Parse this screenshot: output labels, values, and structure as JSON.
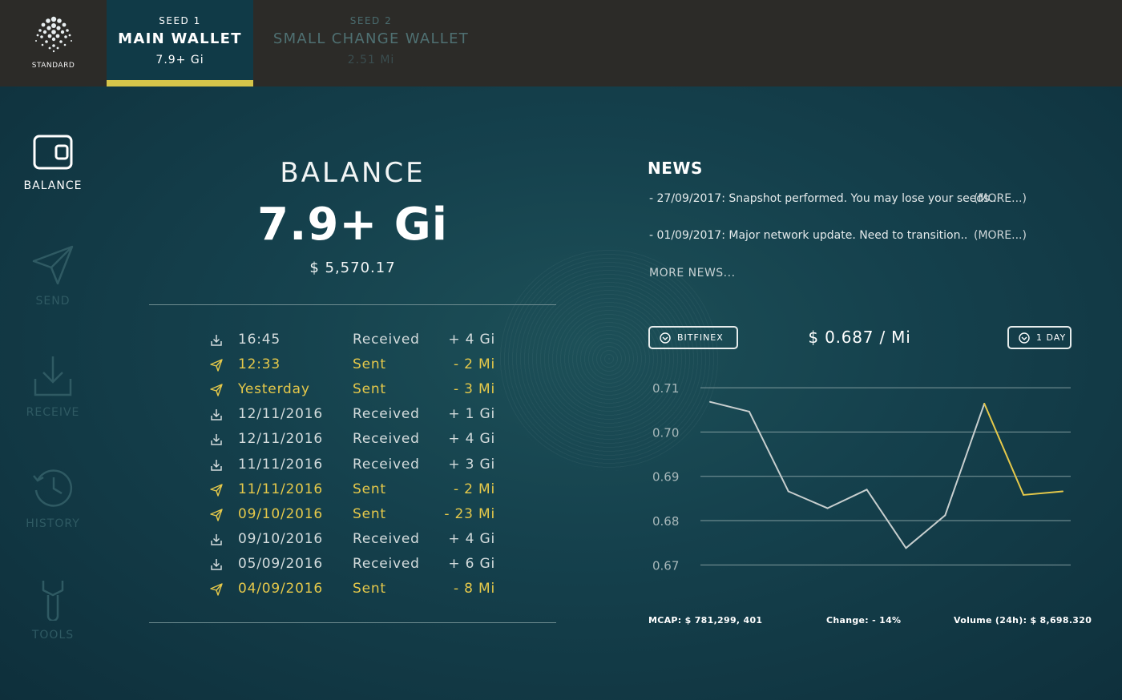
{
  "header": {
    "logo_label": "STANDARD",
    "seeds": [
      {
        "seed_label": "SEED 1",
        "name": "MAIN WALLET",
        "balance": "7.9+ Gi",
        "active": true
      },
      {
        "seed_label": "SEED 2",
        "name": "SMALL CHANGE WALLET",
        "balance": "2.51 Mi",
        "active": false
      }
    ],
    "accent_color": "#d6c54a"
  },
  "sidebar": {
    "items": [
      {
        "label": "BALANCE",
        "icon": "wallet-icon",
        "active": true
      },
      {
        "label": "SEND",
        "icon": "paper-plane-icon",
        "active": false
      },
      {
        "label": "RECEIVE",
        "icon": "download-tray-icon",
        "active": false
      },
      {
        "label": "HISTORY",
        "icon": "history-clock-icon",
        "active": false
      },
      {
        "label": "TOOLS",
        "icon": "wrench-icon",
        "active": false
      }
    ]
  },
  "balance": {
    "heading": "BALANCE",
    "amount": "7.9+ Gi",
    "usd": "$ 5,570.17"
  },
  "transactions": [
    {
      "time": "16:45",
      "type": "Received",
      "amount": "+ 4 Gi",
      "direction": "received"
    },
    {
      "time": "12:33",
      "type": "Sent",
      "amount": "- 2 Mi",
      "direction": "sent"
    },
    {
      "time": "Yesterday",
      "type": "Sent",
      "amount": "- 3 Mi",
      "direction": "sent"
    },
    {
      "time": "12/11/2016",
      "type": "Received",
      "amount": "+ 1 Gi",
      "direction": "received"
    },
    {
      "time": "12/11/2016",
      "type": "Received",
      "amount": "+ 4 Gi",
      "direction": "received"
    },
    {
      "time": "11/11/2016",
      "type": "Received",
      "amount": "+ 3 Gi",
      "direction": "received"
    },
    {
      "time": "11/11/2016",
      "type": "Sent",
      "amount": "- 2 Mi",
      "direction": "sent"
    },
    {
      "time": "09/10/2016",
      "type": "Sent",
      "amount": "- 23 Mi",
      "direction": "sent"
    },
    {
      "time": "09/10/2016",
      "type": "Received",
      "amount": "+ 4 Gi",
      "direction": "received"
    },
    {
      "time": "05/09/2016",
      "type": "Received",
      "amount": "+ 6 Gi",
      "direction": "received"
    },
    {
      "time": "04/09/2016",
      "type": "Sent",
      "amount": "- 8 Mi",
      "direction": "sent"
    }
  ],
  "news": {
    "title": "NEWS",
    "items": [
      {
        "text": "- 27/09/2017: Snapshot performed. You may lose your seeds...",
        "more": "(MORE...)"
      },
      {
        "text": "- 01/09/2017: Major network update. Need to transition..",
        "more": "(MORE...)"
      }
    ],
    "more_news": "MORE NEWS..."
  },
  "market": {
    "exchange": "BITFINEX",
    "price": "$ 0.687 / Mi",
    "range": "1 DAY",
    "mcap": "MCAP: $ 781,299, 401",
    "change": "Change: - 14%",
    "volume": "Volume (24h): $ 8,698.320"
  },
  "chart_data": {
    "type": "line",
    "ylim": [
      0.665,
      0.712
    ],
    "y_ticks": [
      "0.71",
      "0.70",
      "0.69",
      "0.68",
      "0.67"
    ],
    "y_tick_values": [
      0.71,
      0.7,
      0.69,
      0.68,
      0.67
    ],
    "grid": true,
    "series": [
      {
        "color": "#c8cfcf",
        "highlight_color": "#e6c94a",
        "highlight_from_index": 9,
        "values": [
          0.7068,
          0.7046,
          0.6866,
          0.6828,
          0.687,
          0.6738,
          0.6812,
          0.7064,
          0.6858,
          0.6866
        ]
      }
    ]
  }
}
